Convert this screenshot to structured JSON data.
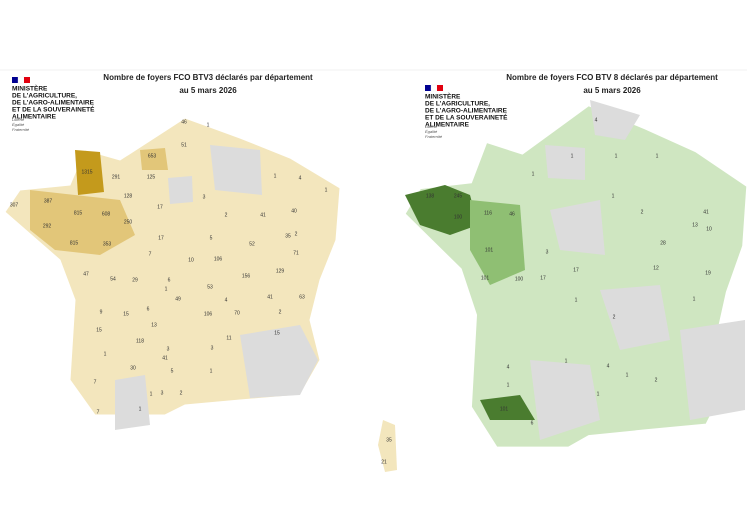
{
  "panels": [
    {
      "logo": [
        "MINISTÈRE",
        "DE L'AGRICULTURE,",
        "DE L'AGRO-ALIMENTAIRE",
        "ET DE LA SOUVERAINETÉ",
        "ALIMENTAIRE"
      ],
      "motto": [
        "Liberté",
        "Égalité",
        "Fraternité"
      ],
      "title": [
        "Nombre de foyers FCO BTV3 déclarés par département",
        "au 5 mars 2026"
      ],
      "labels": [
        46,
        1,
        51,
        653,
        1315,
        291,
        125,
        1,
        4,
        1,
        3,
        307,
        387,
        128,
        17,
        815,
        608,
        250,
        2,
        41,
        40,
        292,
        17,
        5,
        35,
        815,
        353,
        52,
        2,
        7,
        106,
        10,
        71,
        47,
        54,
        29,
        6,
        156,
        129,
        53,
        1,
        49,
        41,
        63,
        9,
        6,
        4,
        15,
        106,
        70,
        2,
        15,
        13,
        15,
        118,
        3,
        11,
        41,
        3,
        1,
        30,
        5,
        1,
        7,
        2,
        3,
        1,
        1,
        7,
        35,
        21
      ]
    },
    {
      "logo": [
        "MINISTÈRE",
        "DE L'AGRICULTURE,",
        "DE L'AGRO-ALIMENTAIRE",
        "ET DE LA SOUVERAINETÉ",
        "ALIMENTAIRE"
      ],
      "motto": [
        "Liberté",
        "Égalité",
        "Fraternité"
      ],
      "title": [
        "Nombre de foyers FCO BTV 8 déclarés par département",
        "au 5 mars 2026"
      ],
      "labels": [
        4,
        1,
        1,
        1,
        1,
        138,
        245,
        100,
        116,
        46,
        1,
        2,
        41,
        13,
        101,
        3,
        17,
        28,
        10,
        101,
        100,
        17,
        12,
        19,
        1,
        1,
        2,
        1,
        4,
        1,
        2,
        1,
        1,
        4,
        101,
        6
      ]
    }
  ]
}
